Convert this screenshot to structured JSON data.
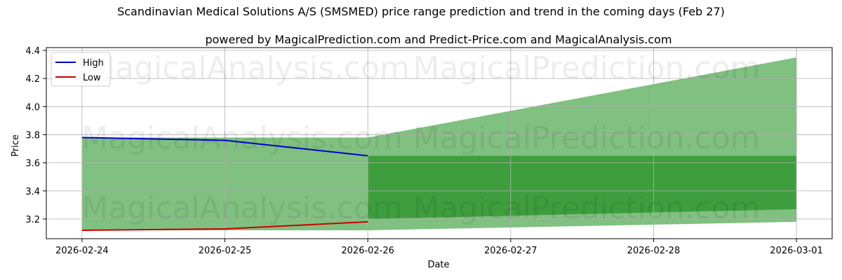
{
  "chart_data": {
    "type": "area",
    "title": "Scandinavian Medical Solutions A/S (SMSMED) price range prediction and trend in the coming days (Feb 27)",
    "subtitle": "powered by MagicalPrediction.com and Predict-Price.com and MagicalAnalysis.com",
    "xlabel": "Date",
    "ylabel": "Price",
    "x_ticks": [
      "2026-02-24",
      "2026-02-25",
      "2026-02-26",
      "2026-02-27",
      "2026-02-28",
      "2026-03-01"
    ],
    "y_ticks": [
      "3.2",
      "3.4",
      "3.6",
      "3.8",
      "4.0",
      "4.2",
      "4.4"
    ],
    "xlim": [
      "2026-02-23.75",
      "2026-03-01.25"
    ],
    "ylim": [
      3.06,
      4.42
    ],
    "grid": true,
    "legend_position": "top-left",
    "series": [
      {
        "name": "High",
        "color": "#0000cc",
        "x": [
          "2026-02-24",
          "2026-02-25",
          "2026-02-26"
        ],
        "values": [
          3.78,
          3.76,
          3.65
        ]
      },
      {
        "name": "Low",
        "color": "#cc0000",
        "x": [
          "2026-02-24",
          "2026-02-25",
          "2026-02-26"
        ],
        "values": [
          3.12,
          3.13,
          3.18
        ]
      }
    ],
    "bands": [
      {
        "color": "#80c080",
        "x": [
          "2026-02-24",
          "2026-02-26"
        ],
        "upper": [
          3.78,
          3.78
        ],
        "lower": [
          3.12,
          3.12
        ]
      },
      {
        "color": "#80c080",
        "x": [
          "2026-02-26",
          "2026-03-01"
        ],
        "upper": [
          3.78,
          4.35
        ],
        "lower": [
          3.12,
          3.18
        ]
      },
      {
        "color": "#3e9e3e",
        "x": [
          "2026-02-26",
          "2026-03-01"
        ],
        "upper": [
          3.65,
          3.65
        ],
        "lower": [
          3.2,
          3.27
        ]
      }
    ],
    "watermarks": [
      "MagicalAnalysis.com",
      "MagicalPrediction.com",
      "MagicalAnalysis.com",
      "MagicalPrediction.com",
      "MagicalAnalysis.com",
      "MagicalPrediction.com"
    ]
  }
}
